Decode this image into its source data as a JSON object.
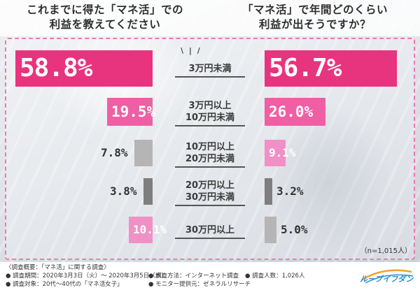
{
  "titles": {
    "left": "これまでに得た「マネ活」での\n利益を教えてください",
    "right": "「マネ活」で年間どのくらい\n利益が出そうですか？"
  },
  "chart_data": {
    "type": "bar",
    "categories": [
      "3万円未満",
      "3万円以上\n10万円未満",
      "10万円以上\n20万円未満",
      "20万円以上\n30万円未満",
      "30万円以上"
    ],
    "series": [
      {
        "name": "これまでに得た「マネ活」での利益を教えてください",
        "values": [
          58.8,
          19.5,
          7.8,
          3.8,
          10.1
        ],
        "labels": [
          "58.8%",
          "19.5%",
          "7.8%",
          "3.8%",
          "10.1%"
        ]
      },
      {
        "name": "「マネ活」で年間どのくらい利益が出そうですか？",
        "values": [
          56.7,
          26.0,
          9.1,
          3.2,
          5.0
        ],
        "labels": [
          "56.7%",
          "26.0%",
          "9.1%",
          "3.2%",
          "5.0%"
        ]
      }
    ],
    "colors": {
      "pink_dark": "#e8337f",
      "pink_mid": "#ef5fa3",
      "pink_light": "#f190c6",
      "gray": "#7e7e7e",
      "gray_light": "#b5b5b5",
      "border": "#f07ab4"
    }
  },
  "sample_size": "（n=1,015人）",
  "footer": {
    "survey_title": "〈調査概要：「マネ活」に関する調査〉",
    "period": "● 調査期間：2020年3月3日（火）～ 2020年3月5日（木）",
    "method": "● 調査方法：インターネット調査",
    "count": "● 調査人数：1,026人",
    "target": "● 調査対象：20代～40代の「マネ活女子」",
    "provider": "● モニター提供元：ゼネラルリサーチ"
  },
  "logo": {
    "text": "ルーブイフダン",
    "icon": "swoosh-logo-icon"
  }
}
